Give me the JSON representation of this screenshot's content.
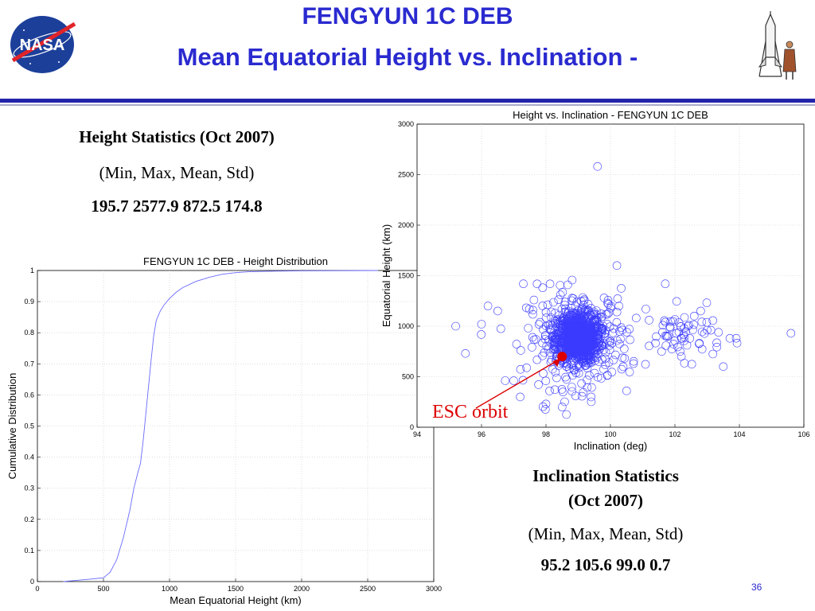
{
  "slide": {
    "title_line1": "FENGYUN 1C DEB",
    "title_line2": "Mean Equatorial Height vs. Inclination -",
    "page_number": "36",
    "logo_text": "NASA"
  },
  "height_stats": {
    "heading": "Height Statistics (Oct 2007)",
    "subheading": "(Min, Max, Mean, Std)",
    "values": "195.7 2577.9  872.5  174.8"
  },
  "inclination_stats": {
    "heading_line1": "Inclination Statistics",
    "heading_line2": "(Oct 2007)",
    "subheading": "(Min, Max, Mean, Std)",
    "values": "95.2  105.6   99.0    0.7"
  },
  "annotation": {
    "label": "ESC orbit",
    "color": "#dd0000"
  },
  "chart_data": [
    {
      "type": "line",
      "title": "FENGYUN 1C DEB - Height Distribution",
      "xlabel": "Mean Equatorial Height (km)",
      "ylabel": "Cumulative Distribution",
      "xlim": [
        0,
        3000
      ],
      "ylim": [
        0,
        1
      ],
      "xticks": [
        "0",
        "500",
        "1000",
        "1500",
        "2000",
        "2500",
        "3000"
      ],
      "yticks": [
        "0",
        "0.1",
        "0.2",
        "0.3",
        "0.4",
        "0.5",
        "0.6",
        "0.7",
        "0.8",
        "0.9",
        "1"
      ],
      "grid": true,
      "color": "#6a6aff",
      "series": [
        {
          "x": [
            196,
            300,
            400,
            500,
            550,
            600,
            650,
            700,
            730,
            760,
            780,
            800,
            830,
            860,
            880,
            900,
            930,
            960,
            1000,
            1050,
            1100,
            1200,
            1300,
            1400,
            1500,
            1600,
            1800,
            2000,
            2578
          ],
          "y": [
            0,
            0.004,
            0.008,
            0.012,
            0.03,
            0.07,
            0.14,
            0.23,
            0.3,
            0.35,
            0.38,
            0.45,
            0.58,
            0.71,
            0.79,
            0.84,
            0.87,
            0.89,
            0.91,
            0.93,
            0.945,
            0.965,
            0.978,
            0.988,
            0.993,
            0.996,
            0.998,
            0.999,
            1.0
          ]
        }
      ]
    },
    {
      "type": "scatter",
      "title": "Height vs. Inclination  - FENGYUN 1C DEB",
      "xlabel": "Inclination (deg)",
      "ylabel": "Equatorial Height (km)",
      "xlim": [
        94,
        106
      ],
      "ylim": [
        0,
        3000
      ],
      "xticks": [
        "94",
        "96",
        "98",
        "100",
        "102",
        "104",
        "106"
      ],
      "yticks": [
        "0",
        "500",
        "1000",
        "1500",
        "2000",
        "2500",
        "3000"
      ],
      "grid": true,
      "color": "#3b3bff",
      "marker": "open-circle",
      "outliers": [
        {
          "x": 99.6,
          "y": 2580
        },
        {
          "x": 95.2,
          "y": 1000
        },
        {
          "x": 95.5,
          "y": 730
        },
        {
          "x": 96.0,
          "y": 1020
        },
        {
          "x": 96.2,
          "y": 1200
        },
        {
          "x": 96.5,
          "y": 1150
        },
        {
          "x": 97.3,
          "y": 1420
        },
        {
          "x": 97.2,
          "y": 300
        },
        {
          "x": 97.0,
          "y": 460
        },
        {
          "x": 98.0,
          "y": 230
        },
        {
          "x": 98.5,
          "y": 200
        },
        {
          "x": 100.2,
          "y": 1600
        },
        {
          "x": 100.8,
          "y": 1080
        },
        {
          "x": 101.2,
          "y": 1060
        },
        {
          "x": 101.7,
          "y": 1420
        },
        {
          "x": 102.4,
          "y": 1000
        },
        {
          "x": 102.6,
          "y": 1100
        },
        {
          "x": 102.8,
          "y": 1150
        },
        {
          "x": 103.5,
          "y": 600
        },
        {
          "x": 103.9,
          "y": 880
        },
        {
          "x": 105.6,
          "y": 930
        },
        {
          "x": 102.2,
          "y": 700
        },
        {
          "x": 100.5,
          "y": 360
        },
        {
          "x": 99.4,
          "y": 300
        }
      ],
      "highlight_point": {
        "x": 98.5,
        "y": 700
      }
    }
  ]
}
